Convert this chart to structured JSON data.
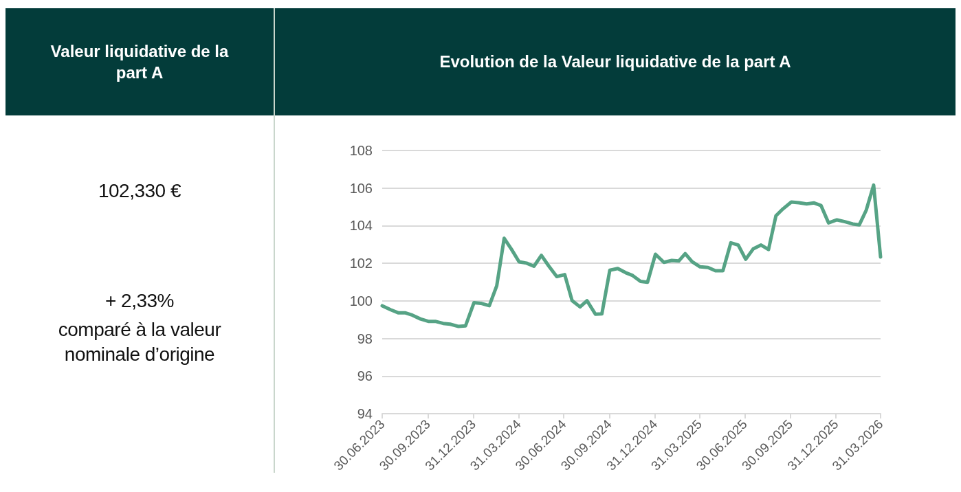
{
  "chart_data": [
    {
      "type": "other",
      "title": "Valeur liquidative de la part A",
      "annotations": [
        "102,330 €",
        "+ 2,33%",
        "comparé à la valeur nominale d’origine"
      ]
    },
    {
      "type": "line",
      "title": "Evolution de la Valeur liquidative de la part A",
      "grid": "y",
      "marker": "none",
      "line_style": "solid",
      "x": [
        "2023-06-30",
        "2023-07-17",
        "2023-08-02",
        "2023-08-16",
        "2023-08-30",
        "2023-09-15",
        "2023-10-01",
        "2023-10-15",
        "2023-10-31",
        "2023-11-14",
        "2023-12-01",
        "2023-12-15",
        "2024-01-01",
        "2024-01-15",
        "2024-02-01",
        "2024-02-16",
        "2024-03-02",
        "2024-03-17",
        "2024-04-01",
        "2024-04-16",
        "2024-05-01",
        "2024-05-16",
        "2024-05-31",
        "2024-06-16",
        "2024-07-02",
        "2024-07-17",
        "2024-08-02",
        "2024-08-16",
        "2024-09-02",
        "2024-09-15",
        "2024-10-01",
        "2024-10-17",
        "2024-11-02",
        "2024-11-16",
        "2024-12-02",
        "2024-12-16",
        "2025-01-01",
        "2025-01-18",
        "2025-02-03",
        "2025-02-17",
        "2025-03-02",
        "2025-03-16",
        "2025-04-01",
        "2025-04-17",
        "2025-05-02",
        "2025-05-17",
        "2025-06-02",
        "2025-06-17",
        "2025-07-02",
        "2025-07-17",
        "2025-08-02",
        "2025-08-17",
        "2025-09-01",
        "2025-09-15",
        "2025-10-02",
        "2025-10-17",
        "2025-11-02",
        "2025-11-17",
        "2025-12-01",
        "2025-12-16",
        "2026-01-02",
        "2026-01-18",
        "2026-02-03",
        "2026-02-16",
        "2026-03-02",
        "2026-03-17",
        "2026-03-31"
      ],
      "series": [
        {
          "color": "#56a385",
          "values": [
            99.74,
            99.53,
            99.36,
            99.36,
            99.24,
            99.04,
            98.91,
            98.91,
            98.8,
            98.76,
            98.64,
            98.67,
            99.9,
            99.87,
            99.74,
            100.8,
            103.33,
            102.73,
            102.08,
            102.01,
            101.84,
            102.42,
            101.85,
            101.29,
            101.4,
            100.01,
            99.68,
            100.01,
            99.29,
            99.31,
            101.63,
            101.72,
            101.5,
            101.35,
            101.04,
            100.99,
            102.48,
            102.05,
            102.15,
            102.12,
            102.51,
            102.08,
            101.81,
            101.78,
            101.6,
            101.6,
            103.09,
            102.97,
            102.21,
            102.76,
            102.97,
            102.73,
            104.53,
            104.89,
            105.26,
            105.22,
            105.16,
            105.21,
            105.07,
            104.15,
            104.31,
            104.21,
            104.09,
            104.04,
            104.82,
            106.16,
            102.33
          ]
        }
      ],
      "xlim": [
        "2023-06-30",
        "2026-03-31"
      ],
      "xticks": [
        {
          "value": "2023-06-30",
          "label": "30.06.2023"
        },
        {
          "value": "2023-09-30",
          "label": "30.09.2023"
        },
        {
          "value": "2023-12-31",
          "label": "31.12.2023"
        },
        {
          "value": "2024-03-31",
          "label": "31.03.2024"
        },
        {
          "value": "2024-06-30",
          "label": "30.06.2024"
        },
        {
          "value": "2024-09-30",
          "label": "30.09.2024"
        },
        {
          "value": "2024-12-31",
          "label": "31.12.2024"
        },
        {
          "value": "2025-03-31",
          "label": "31.03.2025"
        },
        {
          "value": "2025-06-30",
          "label": "30.06.2025"
        },
        {
          "value": "2025-09-30",
          "label": "30.09.2025"
        },
        {
          "value": "2025-12-31",
          "label": "31.12.2025"
        },
        {
          "value": "2026-03-31",
          "label": "31.03.2026"
        }
      ],
      "ylim": [
        94,
        108
      ],
      "yticks": [
        94,
        96,
        98,
        100,
        102,
        104,
        106,
        108
      ]
    }
  ]
}
